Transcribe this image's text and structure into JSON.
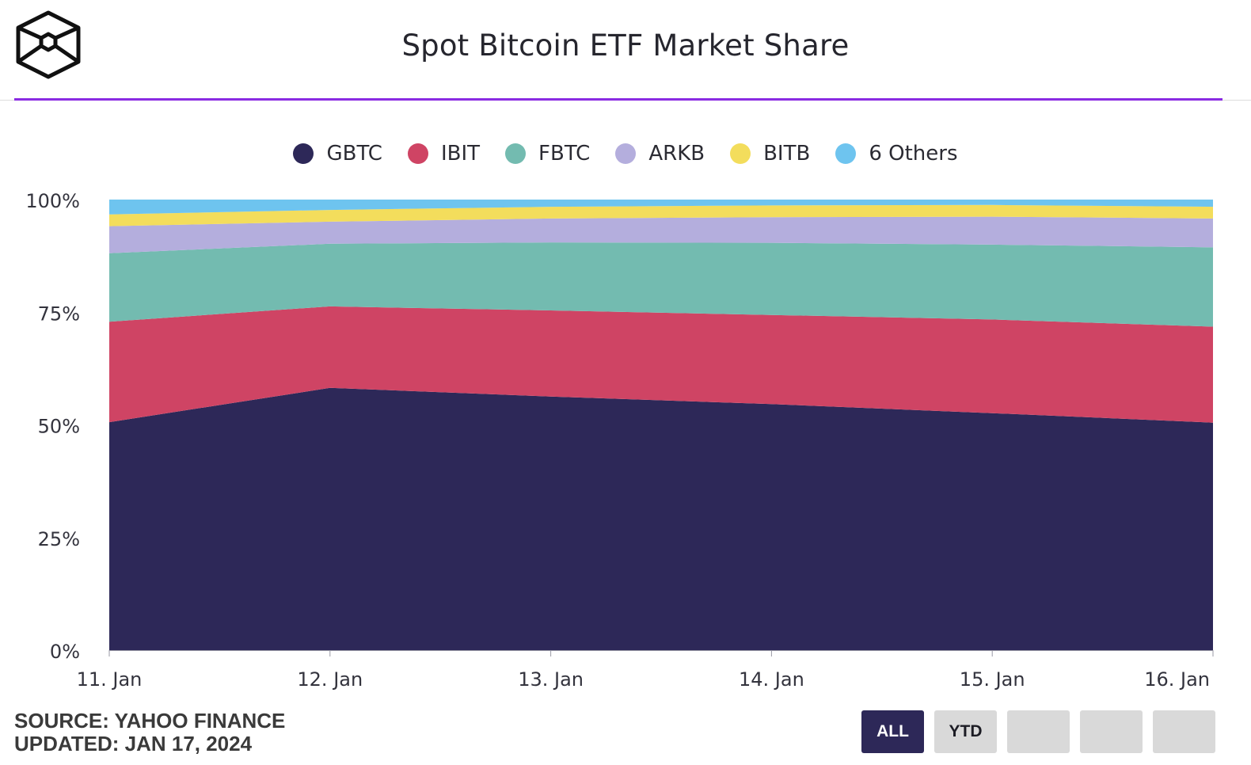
{
  "header": {
    "title": "Spot Bitcoin ETF Market Share",
    "accent_color": "#8a2be2"
  },
  "logo": {
    "icon": "cube-logo-icon"
  },
  "legend": {
    "items": [
      {
        "label": "GBTC",
        "color": "#2d2858"
      },
      {
        "label": "IBIT",
        "color": "#cf4464"
      },
      {
        "label": "FBTC",
        "color": "#73bbb0"
      },
      {
        "label": "ARKB",
        "color": "#b4aedd"
      },
      {
        "label": "BITB",
        "color": "#f3dd5c"
      },
      {
        "label": "6 Others",
        "color": "#6ec4ef"
      }
    ]
  },
  "chart_data": {
    "type": "area",
    "stacked": true,
    "x": [
      "11. Jan",
      "12. Jan",
      "13. Jan",
      "14. Jan",
      "15. Jan",
      "16. Jan"
    ],
    "series": [
      {
        "name": "GBTC",
        "color": "#2d2858",
        "values": [
          50.6,
          58.2,
          56.3,
          54.6,
          52.6,
          50.5
        ]
      },
      {
        "name": "IBIT",
        "color": "#cf4464",
        "values": [
          22.3,
          18.1,
          19.1,
          19.8,
          20.8,
          21.3
        ]
      },
      {
        "name": "FBTC",
        "color": "#73bbb0",
        "values": [
          15.2,
          13.9,
          15.1,
          16.0,
          16.6,
          17.6
        ]
      },
      {
        "name": "ARKB",
        "color": "#b4aedd",
        "values": [
          6.0,
          4.9,
          5.3,
          5.7,
          6.2,
          6.4
        ]
      },
      {
        "name": "BITB",
        "color": "#f3dd5c",
        "values": [
          2.6,
          2.6,
          2.6,
          2.6,
          2.6,
          2.6
        ]
      },
      {
        "name": "6 Others",
        "color": "#6ec4ef",
        "values": [
          3.3,
          2.3,
          1.6,
          1.3,
          1.2,
          1.6
        ]
      }
    ],
    "ylim": [
      0,
      100
    ],
    "y_ticks": [
      "0%",
      "25%",
      "50%",
      "75%",
      "100%"
    ],
    "grid": false,
    "legend_position": "top-center"
  },
  "footer": {
    "source": "SOURCE: YAHOO FINANCE",
    "updated": "UPDATED: JAN 17, 2024"
  },
  "range_buttons": [
    {
      "label": "ALL",
      "active": true
    },
    {
      "label": "YTD",
      "active": false
    },
    {
      "label": "",
      "active": false
    },
    {
      "label": "",
      "active": false
    },
    {
      "label": "",
      "active": false
    }
  ]
}
